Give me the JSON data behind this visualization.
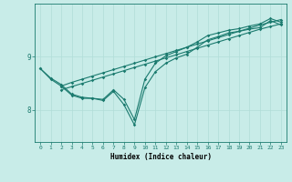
{
  "title": "",
  "xlabel": "Humidex (Indice chaleur)",
  "bg_color": "#c8ece8",
  "line_color": "#1a7a6e",
  "grid_color": "#b0ddd8",
  "xlim": [
    -0.5,
    23.5
  ],
  "ylim": [
    7.4,
    10.0
  ],
  "xticks": [
    0,
    1,
    2,
    3,
    4,
    5,
    6,
    7,
    8,
    9,
    10,
    11,
    12,
    13,
    14,
    15,
    16,
    17,
    18,
    19,
    20,
    21,
    22,
    23
  ],
  "yticks": [
    8,
    9
  ],
  "lines": [
    {
      "x": [
        0,
        1,
        2,
        3,
        4,
        5,
        6,
        7,
        8,
        9,
        10,
        11,
        12,
        13,
        14,
        15,
        16,
        17,
        18,
        19,
        20,
        21,
        22,
        23
      ],
      "y": [
        8.78,
        8.58,
        8.45,
        8.28,
        8.22,
        8.22,
        8.18,
        8.35,
        8.1,
        7.72,
        8.42,
        8.72,
        8.88,
        8.98,
        9.05,
        9.18,
        9.32,
        9.38,
        9.45,
        9.48,
        9.52,
        9.55,
        9.68,
        9.6
      ]
    },
    {
      "x": [
        0,
        1,
        2,
        3,
        4,
        5,
        6,
        7,
        8,
        9,
        10,
        11,
        12,
        13,
        14,
        15,
        16,
        17,
        18,
        19,
        20,
        21,
        22,
        23
      ],
      "y": [
        8.78,
        8.6,
        8.48,
        8.3,
        8.24,
        8.22,
        8.2,
        8.38,
        8.2,
        7.82,
        8.58,
        8.88,
        9.02,
        9.1,
        9.18,
        9.28,
        9.4,
        9.45,
        9.5,
        9.53,
        9.58,
        9.62,
        9.72,
        9.65
      ]
    },
    {
      "x": [
        2,
        3,
        4,
        5,
        6,
        7,
        8,
        9,
        10,
        11,
        12,
        13,
        14,
        15,
        16,
        17,
        18,
        19,
        20,
        21,
        22,
        23
      ],
      "y": [
        8.45,
        8.52,
        8.58,
        8.64,
        8.7,
        8.76,
        8.82,
        8.88,
        8.94,
        9.0,
        9.06,
        9.12,
        9.18,
        9.24,
        9.3,
        9.36,
        9.42,
        9.48,
        9.54,
        9.6,
        9.65,
        9.7
      ]
    },
    {
      "x": [
        2,
        3,
        4,
        5,
        6,
        7,
        8,
        9,
        10,
        11,
        12,
        13,
        14,
        15,
        16,
        17,
        18,
        19,
        20,
        21,
        22,
        23
      ],
      "y": [
        8.38,
        8.44,
        8.5,
        8.56,
        8.62,
        8.68,
        8.74,
        8.8,
        8.86,
        8.92,
        8.98,
        9.04,
        9.1,
        9.16,
        9.22,
        9.28,
        9.34,
        9.4,
        9.46,
        9.52,
        9.57,
        9.62
      ]
    }
  ]
}
